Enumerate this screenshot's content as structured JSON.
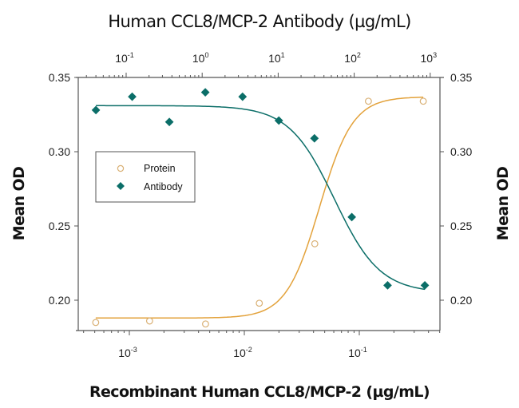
{
  "chart_data": {
    "type": "scatter",
    "title": "Human CCL8/MCP-2 Antibody (µg/mL)",
    "xlabel": "Recombinant Human CCL8/MCP-2 (µg/mL)",
    "ylabel_left": "Mean OD",
    "ylabel_right": "Mean OD",
    "x_bottom": {
      "scale": "log",
      "range": [
        0.0004,
        0.5
      ],
      "ticks": [
        {
          "base": "10",
          "exp": "-3",
          "value": 0.001
        },
        {
          "base": "10",
          "exp": "-2",
          "value": 0.01
        },
        {
          "base": "10",
          "exp": "-1",
          "value": 0.1
        }
      ]
    },
    "x_top": {
      "scale": "log",
      "range": [
        0.033,
        1150
      ],
      "ticks": [
        {
          "base": "10",
          "exp": "-1",
          "value": 0.1
        },
        {
          "base": "10",
          "exp": "0",
          "value": 1
        },
        {
          "base": "10",
          "exp": "1",
          "value": 10
        },
        {
          "base": "10",
          "exp": "2",
          "value": 100
        },
        {
          "base": "10",
          "exp": "3",
          "value": 1000
        }
      ]
    },
    "ylim": [
      0.18,
      0.35
    ],
    "y_ticks": [
      "0.20",
      "0.25",
      "0.30",
      "0.35"
    ],
    "legend": {
      "position": "upper-left",
      "entries": [
        "Protein",
        "Antibody"
      ]
    },
    "series": [
      {
        "name": "Protein",
        "axis": "bottom",
        "marker": "open-circle",
        "color": "#E3A23B",
        "x": [
          0.00051,
          0.0015,
          0.0046,
          0.0135,
          0.041,
          0.12,
          0.36
        ],
        "y": [
          0.185,
          0.186,
          0.184,
          0.198,
          0.238,
          0.334,
          0.334
        ],
        "fit": {
          "bottom": 0.188,
          "top": 0.337,
          "ec50": 0.045,
          "hill": 3.0
        }
      },
      {
        "name": "Antibody",
        "axis": "top",
        "marker": "filled-diamond",
        "color": "#0B6E68",
        "x": [
          0.04,
          0.12,
          0.37,
          1.1,
          3.4,
          10.2,
          30,
          93,
          275,
          850
        ],
        "y": [
          0.328,
          0.337,
          0.32,
          0.34,
          0.337,
          0.321,
          0.309,
          0.256,
          0.21,
          0.21
        ],
        "fit": {
          "bottom": 0.205,
          "top": 0.331,
          "ec50": 55,
          "hill": -1.45
        }
      }
    ]
  }
}
